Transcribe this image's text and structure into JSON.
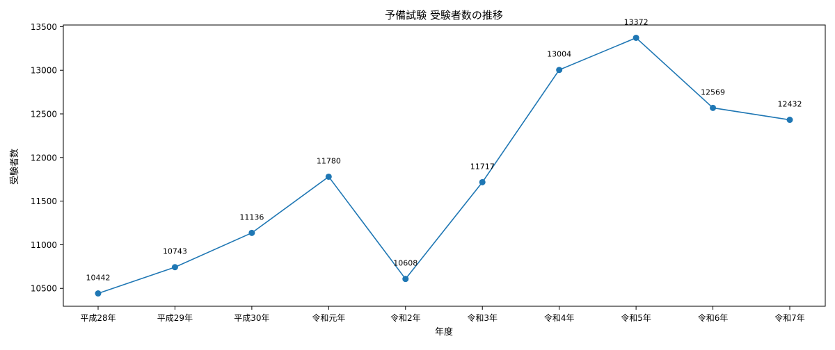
{
  "chart_data": {
    "type": "line",
    "title": "予備試験 受験者数の推移",
    "xlabel": "年度",
    "ylabel": "受験者数",
    "categories": [
      "平成28年",
      "平成29年",
      "平成30年",
      "令和元年",
      "令和2年",
      "令和3年",
      "令和4年",
      "令和5年",
      "令和6年",
      "令和7年"
    ],
    "series": [
      {
        "values": [
          10442,
          10743,
          11136,
          11780,
          10608,
          11717,
          13004,
          13372,
          12569,
          12432
        ],
        "color": "#1f77b4",
        "marker": "circle"
      }
    ],
    "data_labels": [
      "10442",
      "10743",
      "11136",
      "11780",
      "10608",
      "11717",
      "13004",
      "13372",
      "12569",
      "12432"
    ],
    "yticks": [
      10500,
      11000,
      11500,
      12000,
      12500,
      13000,
      13500
    ],
    "ytick_labels": [
      "10500",
      "11000",
      "11500",
      "12000",
      "12500",
      "13000",
      "13500"
    ],
    "ylim": [
      10295,
      13519
    ],
    "grid": false,
    "legend": "none"
  }
}
